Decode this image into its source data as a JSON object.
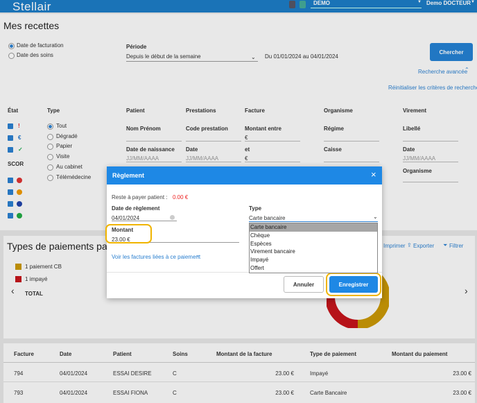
{
  "header": {
    "logo": "Stellair",
    "account": "DEMO",
    "user": "Demo DOCTEUR"
  },
  "page": {
    "title": "Mes recettes",
    "date_options": [
      "Date de facturation",
      "Date des soins"
    ],
    "period_label": "Période",
    "period_value": "Depuis le début de la semaine",
    "period_range": "Du 01/01/2024 au 04/01/2024",
    "search_button": "Chercher",
    "advanced_search": "Recherche avancée",
    "reset": "Réinitialiser les critères de recherche"
  },
  "filters": {
    "etat": "État",
    "scor": "SCOR",
    "type": {
      "label": "Type",
      "options": [
        "Tout",
        "Dégradé",
        "Papier",
        "Visite",
        "Au cabinet",
        "Télémédecine"
      ]
    },
    "patient": {
      "label": "Patient",
      "name": "Nom Prénom",
      "birth": "Date de naissance",
      "birth_placeholder": "JJ/MM/AAAA"
    },
    "prestations": {
      "label": "Prestations",
      "code": "Code prestation",
      "date": "Date",
      "date_placeholder": "JJ/MM/AAAA"
    },
    "facture": {
      "label": "Facture",
      "amount_from": "Montant entre",
      "currency_from": "€",
      "and": "et",
      "currency_to": "€"
    },
    "organisme": {
      "label": "Organisme",
      "regime": "Régime",
      "caisse": "Caisse"
    },
    "virement": {
      "label": "Virement",
      "libelle": "Libellé",
      "date": "Date",
      "date_placeholder": "JJ/MM/AAAA",
      "organisme": "Organisme"
    }
  },
  "payments": {
    "title": "Types de paiements par",
    "actions": [
      "Imprimer",
      "Exporter",
      "Filtrer"
    ],
    "legend": [
      "1 paiement CB",
      "1 impayé"
    ],
    "total": "TOTAL"
  },
  "table": {
    "columns": [
      "Facture",
      "Date",
      "Patient",
      "Soins",
      "Montant de la facture",
      "Type de paiement",
      "Montant du paiement"
    ],
    "rows": [
      [
        "794",
        "04/01/2024",
        "ESSAI DESIRE",
        "C",
        "23.00 €",
        "Impayé",
        "23.00 €"
      ],
      [
        "793",
        "04/01/2024",
        "ESSAI FIONA",
        "C",
        "23.00 €",
        "Carte Bancaire",
        "23.00 €"
      ]
    ]
  },
  "modal": {
    "title": "Règlement",
    "remaining_label": "Reste à payer patient :",
    "remaining_value": "0.00 €",
    "date_label": "Date de règlement",
    "date_value": "04/01/2024",
    "type_label": "Type",
    "type_value": "Carte bancaire",
    "type_options": [
      "Carte bancaire",
      "Chèque",
      "Espèces",
      "Virement bancaire",
      "Impayé",
      "Offert"
    ],
    "amount_label": "Montant",
    "amount_value": "23.00 €",
    "linked_invoices": "Voir les factures liées à ce paiement",
    "cancel": "Annuler",
    "save": "Enregistrer"
  }
}
